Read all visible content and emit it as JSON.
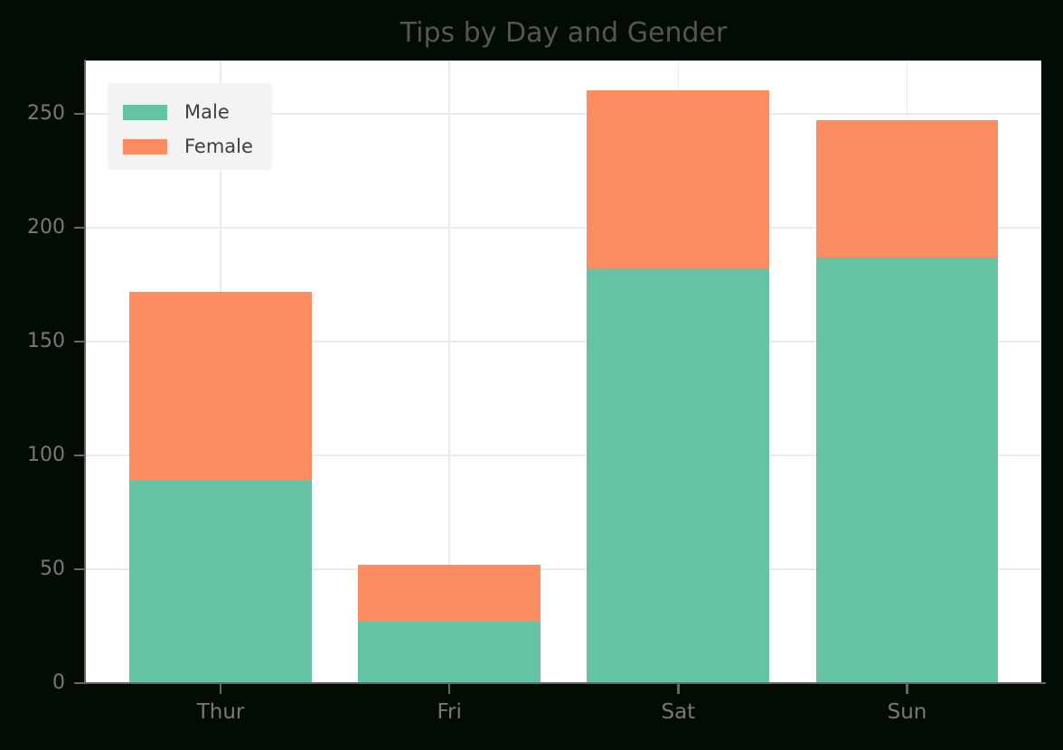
{
  "colors": {
    "figure_background": "#030c03",
    "plot_background": "#ffffff",
    "grid": "#ebebeb",
    "title_text": "#555555",
    "tick_text": "#787878",
    "axis_spine": "#666666",
    "legend_background": "#f3f3f3",
    "legend_text": "#3f3f3f"
  },
  "chart_data": {
    "type": "bar",
    "stacked": true,
    "title": "Tips by Day and Gender",
    "xlabel": "",
    "ylabel": "",
    "categories": [
      "Thur",
      "Fri",
      "Sat",
      "Sun"
    ],
    "series": [
      {
        "name": "Male",
        "color": "#66c2a5",
        "values": [
          89.41,
          26.93,
          181.95,
          186.78
        ]
      },
      {
        "name": "Female",
        "color": "#fc8d62",
        "values": [
          82.42,
          25.03,
          78.45,
          60.61
        ]
      }
    ],
    "totals": [
      171.83,
      51.96,
      260.4,
      247.39
    ],
    "ylim": [
      0,
      273.4
    ],
    "yticks": [
      0,
      50,
      100,
      150,
      200,
      250
    ],
    "grid": true,
    "legend_position": "upper-left",
    "legend_entries": [
      "Male",
      "Female"
    ]
  }
}
